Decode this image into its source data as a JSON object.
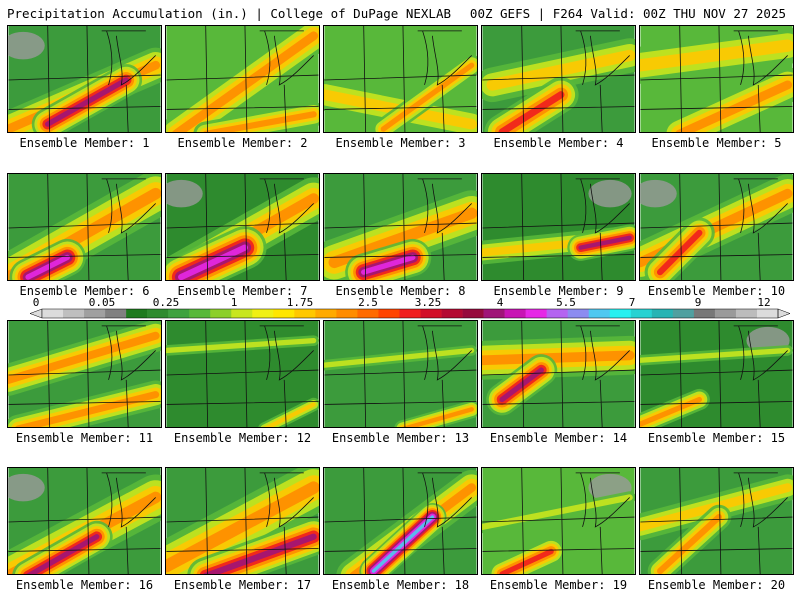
{
  "header": {
    "left": "Precipitation Accumulation (in.) | College of DuPage NEXLAB",
    "right": "00Z GEFS | F264 Valid: 00Z THU NOV 27 2025"
  },
  "panels": [
    {
      "label": "Ensemble Member: 1"
    },
    {
      "label": "Ensemble Member: 2"
    },
    {
      "label": "Ensemble Member: 3"
    },
    {
      "label": "Ensemble Member: 4"
    },
    {
      "label": "Ensemble Member: 5"
    },
    {
      "label": "Ensemble Member: 6"
    },
    {
      "label": "Ensemble Member: 7"
    },
    {
      "label": "Ensemble Member: 8"
    },
    {
      "label": "Ensemble Member: 9"
    },
    {
      "label": "Ensemble Member: 10"
    },
    {
      "label": "Ensemble Member: 11"
    },
    {
      "label": "Ensemble Member: 12"
    },
    {
      "label": "Ensemble Member: 13"
    },
    {
      "label": "Ensemble Member: 14"
    },
    {
      "label": "Ensemble Member: 15"
    },
    {
      "label": "Ensemble Member: 16"
    },
    {
      "label": "Ensemble Member: 17"
    },
    {
      "label": "Ensemble Member: 18"
    },
    {
      "label": "Ensemble Member: 19"
    },
    {
      "label": "Ensemble Member: 20"
    }
  ],
  "colorbar": {
    "tick_labels": [
      "0",
      "0.05",
      "0.25",
      "1",
      "1.75",
      "2.5",
      "3.25",
      "4",
      "5.5",
      "7",
      "9",
      "12"
    ],
    "colors": [
      "#dcdcdc",
      "#bfbfbf",
      "#a0a0a0",
      "#808080",
      "#1e7a1e",
      "#2e8b2e",
      "#3fa23f",
      "#58b83a",
      "#8ccf2a",
      "#c8e61e",
      "#f0f014",
      "#ffe600",
      "#ffc800",
      "#ffaa00",
      "#ff8c00",
      "#ff6a00",
      "#ff4400",
      "#f01e1e",
      "#d20f28",
      "#b40a32",
      "#960a3c",
      "#a01478",
      "#c814b4",
      "#e628e6",
      "#b464f0",
      "#8c8cf0",
      "#50c8f0",
      "#28f0f0",
      "#28d2d2",
      "#28b4b4",
      "#50a0a0",
      "#787878",
      "#9a9a9a",
      "#bcbcbc",
      "#dcdcdc"
    ]
  }
}
